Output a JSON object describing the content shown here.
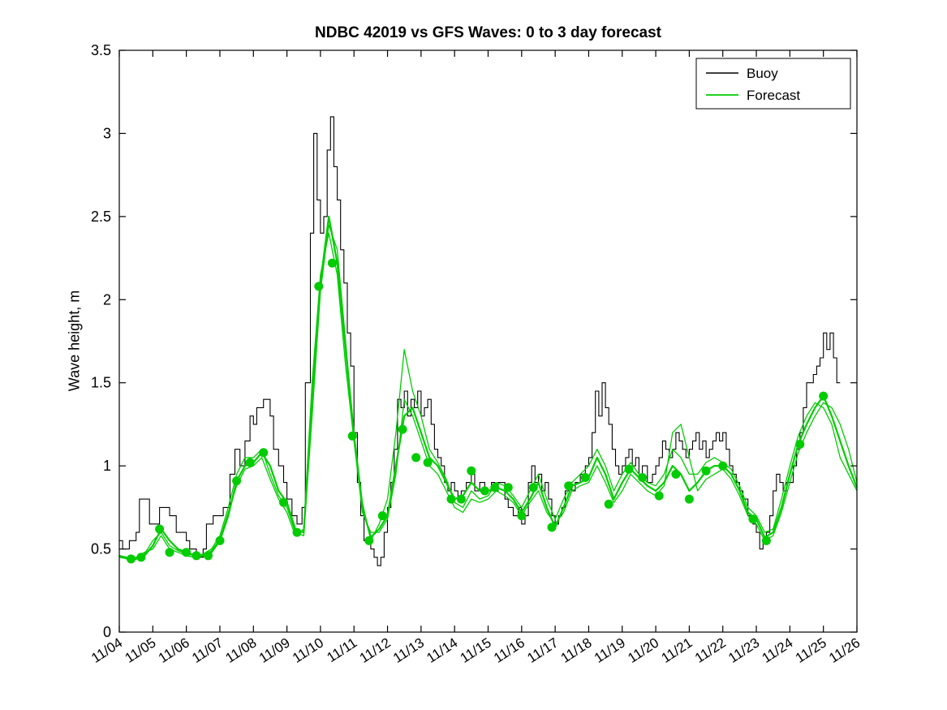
{
  "chart_data": {
    "type": "line",
    "title": "NDBC 42019 vs GFS Waves: 0 to 3 day forecast",
    "ylabel": "Wave height, m",
    "xlabel": "",
    "grid": false,
    "xlim": [
      4,
      26
    ],
    "ylim": [
      0,
      3.5
    ],
    "y_ticks": [
      0,
      0.5,
      1,
      1.5,
      2,
      2.5,
      3,
      3.5
    ],
    "y_tick_labels": [
      "0",
      "0.5",
      "1",
      "1.5",
      "2",
      "2.5",
      "3",
      "3.5"
    ],
    "x_ticks": [
      4,
      5,
      6,
      7,
      8,
      9,
      10,
      11,
      12,
      13,
      14,
      15,
      16,
      17,
      18,
      19,
      20,
      21,
      22,
      23,
      24,
      25,
      26
    ],
    "x_tick_labels": [
      "11/04",
      "11/05",
      "11/06",
      "11/07",
      "11/08",
      "11/09",
      "11/10",
      "11/11",
      "11/12",
      "11/13",
      "11/14",
      "11/15",
      "11/16",
      "11/17",
      "11/18",
      "11/19",
      "11/20",
      "11/21",
      "11/22",
      "11/23",
      "11/24",
      "11/25",
      "11/26"
    ],
    "colors": {
      "buoy": "#000000",
      "forecast": "#00cc00",
      "background": "#ffffff"
    },
    "legend": {
      "position": "top-right",
      "entries": [
        {
          "label": "Buoy",
          "color": "#000000"
        },
        {
          "label": "Forecast",
          "color": "#00cc00"
        }
      ]
    },
    "series": {
      "buoy": {
        "name": "Buoy",
        "style": "step",
        "x": [
          4.0,
          4.1,
          4.3,
          4.5,
          4.6,
          4.75,
          4.9,
          5.0,
          5.2,
          5.4,
          5.5,
          5.7,
          5.9,
          6.0,
          6.1,
          6.3,
          6.5,
          6.6,
          6.8,
          7.0,
          7.1,
          7.3,
          7.45,
          7.6,
          7.75,
          7.9,
          8.0,
          8.1,
          8.3,
          8.5,
          8.6,
          8.75,
          8.9,
          9.0,
          9.15,
          9.3,
          9.45,
          9.55,
          9.7,
          9.8,
          9.9,
          10.0,
          10.1,
          10.2,
          10.3,
          10.4,
          10.5,
          10.6,
          10.7,
          10.8,
          10.9,
          11.0,
          11.1,
          11.2,
          11.3,
          11.5,
          11.6,
          11.7,
          11.8,
          11.9,
          12.0,
          12.1,
          12.2,
          12.3,
          12.4,
          12.5,
          12.6,
          12.7,
          12.8,
          12.9,
          13.0,
          13.1,
          13.2,
          13.3,
          13.4,
          13.5,
          13.6,
          13.7,
          13.8,
          13.9,
          14.0,
          14.1,
          14.2,
          14.35,
          14.5,
          14.6,
          14.75,
          14.9,
          15.0,
          15.1,
          15.2,
          15.3,
          15.5,
          15.6,
          15.75,
          15.9,
          16.0,
          16.1,
          16.2,
          16.3,
          16.4,
          16.5,
          16.6,
          16.7,
          16.8,
          16.9,
          17.0,
          17.1,
          17.2,
          17.3,
          17.4,
          17.5,
          17.6,
          17.75,
          17.9,
          18.0,
          18.1,
          18.2,
          18.3,
          18.4,
          18.5,
          18.6,
          18.7,
          18.8,
          18.9,
          19.0,
          19.1,
          19.2,
          19.3,
          19.4,
          19.5,
          19.6,
          19.75,
          19.9,
          20.0,
          20.1,
          20.2,
          20.3,
          20.4,
          20.5,
          20.6,
          20.7,
          20.8,
          20.9,
          21.0,
          21.1,
          21.2,
          21.3,
          21.4,
          21.5,
          21.6,
          21.7,
          21.8,
          21.9,
          22.0,
          22.1,
          22.2,
          22.3,
          22.4,
          22.5,
          22.6,
          22.75,
          22.9,
          23.0,
          23.1,
          23.2,
          23.3,
          23.4,
          23.5,
          23.6,
          23.7,
          23.8,
          23.9,
          24.0,
          24.1,
          24.2,
          24.3,
          24.4,
          24.5,
          24.6,
          24.7,
          24.8,
          24.9,
          25.0,
          25.1,
          25.2,
          25.3,
          25.4,
          25.5
        ],
        "y": [
          0.55,
          0.5,
          0.55,
          0.6,
          0.8,
          0.8,
          0.65,
          0.65,
          0.75,
          0.75,
          0.7,
          0.6,
          0.6,
          0.55,
          0.5,
          0.45,
          0.5,
          0.65,
          0.7,
          0.7,
          0.75,
          0.95,
          1.1,
          1.0,
          1.15,
          1.3,
          1.25,
          1.35,
          1.4,
          1.3,
          1.1,
          1.0,
          0.9,
          0.8,
          0.7,
          0.65,
          0.75,
          1.5,
          2.4,
          3.0,
          2.6,
          2.4,
          2.5,
          2.9,
          3.1,
          2.8,
          2.6,
          2.3,
          2.1,
          1.8,
          1.6,
          1.2,
          0.9,
          0.7,
          0.55,
          0.5,
          0.45,
          0.4,
          0.45,
          0.6,
          0.75,
          0.9,
          1.1,
          1.4,
          1.35,
          1.45,
          1.3,
          1.4,
          1.35,
          1.45,
          1.3,
          1.35,
          1.4,
          1.25,
          1.1,
          1.05,
          1.0,
          0.9,
          0.85,
          0.9,
          0.85,
          0.8,
          0.85,
          0.9,
          0.95,
          0.85,
          0.9,
          0.85,
          0.85,
          0.9,
          0.85,
          0.9,
          0.8,
          0.75,
          0.7,
          0.75,
          0.65,
          0.7,
          0.9,
          1.0,
          0.9,
          0.95,
          0.85,
          0.9,
          0.8,
          0.7,
          0.65,
          0.7,
          0.75,
          0.85,
          0.9,
          0.85,
          0.9,
          0.95,
          1.0,
          1.05,
          1.2,
          1.45,
          1.3,
          1.5,
          1.35,
          1.25,
          1.1,
          1.0,
          0.95,
          1.0,
          1.05,
          1.1,
          1.0,
          1.05,
          0.95,
          1.0,
          0.9,
          0.95,
          1.0,
          1.05,
          1.15,
          1.1,
          1.05,
          1.1,
          1.2,
          1.15,
          1.1,
          1.05,
          1.1,
          1.15,
          1.2,
          1.1,
          1.15,
          1.05,
          1.1,
          1.15,
          1.2,
          1.15,
          1.2,
          1.1,
          1.0,
          0.95,
          0.9,
          0.85,
          0.8,
          0.7,
          0.65,
          0.6,
          0.5,
          0.55,
          0.6,
          0.7,
          0.85,
          0.95,
          0.9,
          0.85,
          0.9,
          0.9,
          1.0,
          1.1,
          1.2,
          1.35,
          1.5,
          1.5,
          1.55,
          1.6,
          1.65,
          1.8,
          1.7,
          1.8,
          1.65,
          1.5,
          1.5
        ]
      },
      "forecast_x": [
        4.0,
        4.25,
        4.5,
        4.75,
        5.0,
        5.25,
        5.5,
        5.75,
        6.0,
        6.25,
        6.5,
        6.75,
        7.0,
        7.25,
        7.5,
        7.75,
        8.0,
        8.25,
        8.5,
        8.75,
        9.0,
        9.25,
        9.5,
        9.75,
        10.0,
        10.25,
        10.5,
        10.75,
        11.0,
        11.25,
        11.5,
        11.75,
        12.0,
        12.25,
        12.5,
        12.75,
        13.0,
        13.25,
        13.5,
        13.75,
        14.0,
        14.25,
        14.5,
        14.75,
        15.0,
        15.25,
        15.5,
        15.75,
        16.0,
        16.25,
        16.5,
        16.75,
        17.0,
        17.25,
        17.5,
        17.75,
        18.0,
        18.25,
        18.5,
        18.75,
        19.0,
        19.25,
        19.5,
        19.75,
        20.0,
        20.25,
        20.5,
        20.75,
        21.0,
        21.25,
        21.5,
        21.75,
        22.0,
        22.25,
        22.5,
        22.75,
        23.0,
        23.25,
        23.5,
        23.75,
        24.0,
        24.25,
        24.5,
        24.75,
        25.0,
        25.25,
        25.5,
        25.75,
        26.0
      ],
      "forecast_runs": [
        {
          "name": "Forecast run 1",
          "y": [
            0.46,
            0.44,
            0.44,
            0.46,
            0.52,
            0.62,
            0.55,
            0.5,
            0.48,
            0.46,
            0.46,
            0.48,
            0.55,
            0.7,
            0.91,
            1.0,
            1.02,
            1.08,
            1.0,
            0.85,
            0.78,
            0.62,
            0.6,
            1.4,
            2.1,
            2.5,
            2.22,
            1.7,
            1.18,
            0.75,
            0.57,
            0.62,
            0.7,
            1.0,
            1.3,
            1.35,
            1.2,
            1.05,
            1.0,
            0.9,
            0.8,
            0.82,
            0.9,
            0.85,
            0.85,
            0.87,
            0.85,
            0.8,
            0.72,
            0.8,
            0.9,
            0.75,
            0.63,
            0.75,
            0.88,
            0.9,
            0.93,
            1.05,
            0.95,
            0.8,
            0.9,
            0.98,
            0.93,
            0.88,
            0.85,
            0.9,
            1.0,
            0.95,
            0.85,
            0.9,
            0.97,
            1.0,
            1.0,
            0.95,
            0.85,
            0.72,
            0.68,
            0.57,
            0.6,
            0.75,
            0.95,
            1.13,
            1.25,
            1.35,
            1.42,
            1.3,
            1.15,
            1.0,
            0.87
          ]
        },
        {
          "name": "Forecast run 2",
          "y": [
            0.46,
            0.45,
            0.44,
            0.47,
            0.55,
            0.6,
            0.52,
            0.49,
            0.47,
            0.46,
            0.47,
            0.5,
            0.58,
            0.75,
            0.95,
            1.05,
            1.05,
            1.1,
            0.95,
            0.82,
            0.75,
            0.6,
            0.58,
            1.3,
            2.05,
            2.45,
            2.3,
            1.75,
            1.2,
            0.78,
            0.55,
            0.65,
            0.8,
            1.2,
            1.7,
            1.45,
            1.3,
            1.1,
            1.02,
            0.92,
            0.78,
            0.75,
            0.85,
            0.8,
            0.82,
            0.9,
            0.88,
            0.82,
            0.75,
            0.85,
            0.95,
            0.8,
            0.68,
            0.8,
            0.9,
            0.95,
            1.0,
            1.1,
            1.0,
            0.85,
            0.95,
            1.02,
            0.95,
            0.9,
            0.88,
            0.95,
            1.1,
            1.05,
            0.95,
            0.95,
            1.02,
            1.05,
            1.02,
            0.98,
            0.88,
            0.75,
            0.7,
            0.6,
            0.62,
            0.8,
            1.0,
            1.18,
            1.3,
            1.38,
            1.35,
            1.25,
            1.05,
            0.95,
            0.85
          ]
        },
        {
          "name": "Forecast run 3",
          "y": [
            0.45,
            0.44,
            0.45,
            0.48,
            0.5,
            0.58,
            0.5,
            0.48,
            0.46,
            0.45,
            0.46,
            0.49,
            0.56,
            0.72,
            0.88,
            0.98,
            1.0,
            1.05,
            0.92,
            0.8,
            0.72,
            0.58,
            0.62,
            1.5,
            2.15,
            2.4,
            2.15,
            1.6,
            1.15,
            0.72,
            0.6,
            0.6,
            0.68,
            0.95,
            1.4,
            1.3,
            1.15,
            1.0,
            0.95,
            0.85,
            0.75,
            0.72,
            0.8,
            0.78,
            0.8,
            0.85,
            0.82,
            0.78,
            0.7,
            0.78,
            0.85,
            0.72,
            0.65,
            0.72,
            0.85,
            0.88,
            0.9,
            1.0,
            0.9,
            0.78,
            0.85,
            0.95,
            0.9,
            0.85,
            0.82,
            0.88,
            1.2,
            1.25,
            1.05,
            0.85,
            0.92,
            0.95,
            0.98,
            0.92,
            0.82,
            0.7,
            0.65,
            0.55,
            0.58,
            0.72,
            0.9,
            1.08,
            1.2,
            1.3,
            1.38,
            1.35,
            1.25,
            1.1,
            0.9
          ]
        }
      ],
      "forecast_markers": {
        "x": [
          4.35,
          4.65,
          5.2,
          5.5,
          6.0,
          6.3,
          6.65,
          7.0,
          7.5,
          7.9,
          8.3,
          8.9,
          9.3,
          9.95,
          10.35,
          10.95,
          11.45,
          11.85,
          12.45,
          12.85,
          13.2,
          13.9,
          14.2,
          14.5,
          14.9,
          15.2,
          15.6,
          16.0,
          16.35,
          16.9,
          17.4,
          17.9,
          18.6,
          19.2,
          19.6,
          20.1,
          20.6,
          21.0,
          21.5,
          22.0,
          22.9,
          23.3,
          24.3,
          25.0
        ],
        "y": [
          0.44,
          0.45,
          0.62,
          0.48,
          0.48,
          0.46,
          0.46,
          0.55,
          0.91,
          1.02,
          1.08,
          0.78,
          0.6,
          2.08,
          2.22,
          1.18,
          0.55,
          0.7,
          1.22,
          1.05,
          1.02,
          0.8,
          0.8,
          0.97,
          0.85,
          0.87,
          0.87,
          0.7,
          0.87,
          0.63,
          0.88,
          0.93,
          0.77,
          0.98,
          0.93,
          0.82,
          0.95,
          0.8,
          0.97,
          1.0,
          0.68,
          0.55,
          1.13,
          1.42
        ]
      }
    }
  }
}
